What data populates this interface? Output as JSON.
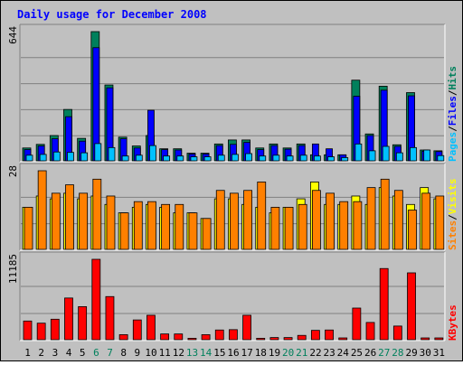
{
  "title": "Daily usage for December 2008",
  "colors": {
    "background": "#c0c0c0",
    "title": "#0000ff",
    "hits": "#00805c",
    "files": "#0000ff",
    "pages": "#00c0ff",
    "visits": "#ffff00",
    "sites": "#ff8000",
    "kbytes": "#ff0000",
    "weekend": "#00805c",
    "weekday": "#000000"
  },
  "chart_data": [
    {
      "type": "bar",
      "panel": "top",
      "max_label": "644",
      "legend": [
        {
          "label": "Pages",
          "color": "#00c0ff"
        },
        {
          "label": "Files",
          "color": "#0000ff"
        },
        {
          "label": "Hits",
          "color": "#00805c"
        }
      ],
      "categories": [
        "1",
        "2",
        "3",
        "4",
        "5",
        "6",
        "7",
        "8",
        "9",
        "10",
        "11",
        "12",
        "13",
        "14",
        "15",
        "16",
        "17",
        "18",
        "19",
        "20",
        "21",
        "22",
        "23",
        "24",
        "25",
        "26",
        "27",
        "28",
        "29",
        "30",
        "31"
      ],
      "series": [
        {
          "name": "Hits",
          "values": [
            64,
            82,
            126,
            256,
            112,
            644,
            378,
            118,
            74,
            126,
            60,
            60,
            38,
            38,
            84,
            104,
            104,
            64,
            84,
            64,
            84,
            30,
            30,
            30,
            402,
            134,
            372,
            80,
            340,
            54,
            50
          ]
        },
        {
          "name": "Files",
          "values": [
            56,
            74,
            110,
            220,
            98,
            564,
            364,
            110,
            64,
            252,
            56,
            54,
            34,
            34,
            76,
            82,
            92,
            56,
            76,
            58,
            76,
            84,
            60,
            30,
            322,
            126,
            352,
            72,
            324,
            48,
            46
          ]
        },
        {
          "name": "Pages",
          "values": [
            28,
            32,
            44,
            42,
            40,
            86,
            66,
            24,
            28,
            76,
            24,
            24,
            20,
            20,
            28,
            32,
            36,
            24,
            28,
            24,
            28,
            24,
            20,
            16,
            84,
            50,
            72,
            40,
            66,
            54,
            26
          ]
        }
      ],
      "ylim": [
        0,
        644
      ]
    },
    {
      "type": "bar",
      "panel": "middle",
      "max_label": "28",
      "legend": [
        {
          "label": "Sites",
          "color": "#ff8000"
        },
        {
          "label": "Visits",
          "color": "#ffff00"
        }
      ],
      "categories": [
        "1",
        "2",
        "3",
        "4",
        "5",
        "6",
        "7",
        "8",
        "9",
        "10",
        "11",
        "12",
        "13",
        "14",
        "15",
        "16",
        "17",
        "18",
        "19",
        "20",
        "21",
        "22",
        "23",
        "24",
        "25",
        "26",
        "27",
        "28",
        "29",
        "30",
        "31"
      ],
      "series": [
        {
          "name": "Visits",
          "values": [
            15,
            19,
            18,
            20,
            18,
            19,
            16,
            13,
            15,
            16,
            15,
            13,
            13,
            11,
            18,
            18,
            16,
            15,
            13,
            15,
            18,
            24,
            16,
            16,
            19,
            16,
            22,
            19,
            16,
            22,
            18
          ]
        },
        {
          "name": "Sites",
          "values": [
            15,
            28,
            20,
            23,
            20,
            25,
            19,
            13,
            17,
            17,
            16,
            16,
            13,
            11,
            21,
            20,
            21,
            24,
            15,
            15,
            16,
            21,
            20,
            17,
            17,
            22,
            25,
            21,
            14,
            20,
            19
          ]
        }
      ],
      "ylim": [
        0,
        28
      ]
    },
    {
      "type": "bar",
      "panel": "bottom",
      "max_label": "11185",
      "legend": [
        {
          "label": "KBytes",
          "color": "#ff0000"
        }
      ],
      "categories": [
        "1",
        "2",
        "3",
        "4",
        "5",
        "6",
        "7",
        "8",
        "9",
        "10",
        "11",
        "12",
        "13",
        "14",
        "15",
        "16",
        "17",
        "18",
        "19",
        "20",
        "21",
        "22",
        "23",
        "24",
        "25",
        "26",
        "27",
        "28",
        "29",
        "30",
        "31"
      ],
      "series": [
        {
          "name": "KBytes",
          "values": [
            2600,
            2300,
            2850,
            5800,
            4600,
            11185,
            6000,
            700,
            2750,
            3400,
            800,
            800,
            200,
            700,
            1350,
            1400,
            3400,
            200,
            300,
            300,
            600,
            1300,
            1350,
            250,
            4400,
            2400,
            9900,
            1900,
            9300,
            250,
            250
          ]
        }
      ],
      "ylim": [
        0,
        11185
      ]
    }
  ],
  "x_axis": {
    "labels": [
      "1",
      "2",
      "3",
      "4",
      "5",
      "6",
      "7",
      "8",
      "9",
      "10",
      "11",
      "12",
      "13",
      "14",
      "15",
      "16",
      "17",
      "18",
      "19",
      "20",
      "21",
      "22",
      "23",
      "24",
      "25",
      "26",
      "27",
      "28",
      "29",
      "30",
      "31"
    ],
    "weekend_days": [
      "6",
      "7",
      "13",
      "14",
      "20",
      "21",
      "27",
      "28"
    ]
  },
  "legend_separator": "/"
}
